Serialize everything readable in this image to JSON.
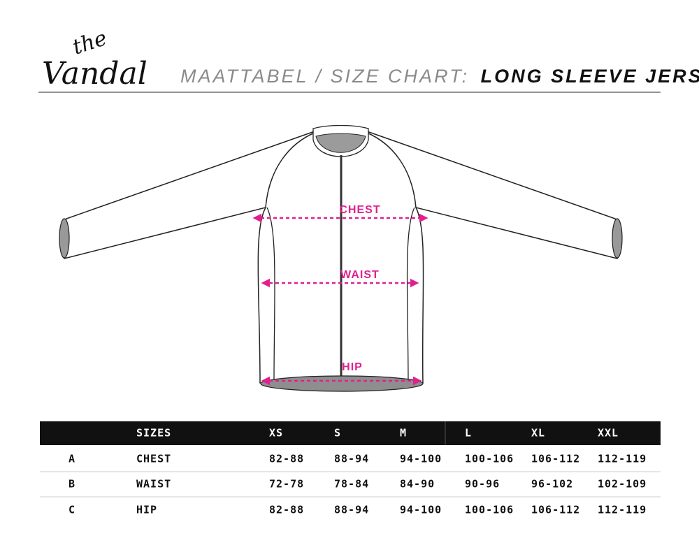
{
  "logo": {
    "line1": "the",
    "line2": "Vandal"
  },
  "title": {
    "prefix": "MAATTABEL / SIZE CHART:",
    "product": "LONG SLEEVE JERSEY"
  },
  "diagram": {
    "labels": [
      "CHEST",
      "WAIST",
      "HIP"
    ]
  },
  "table": {
    "header": [
      "SIZES",
      "XS",
      "S",
      "M",
      "L",
      "XL",
      "XXL"
    ],
    "rows": [
      [
        "A",
        "CHEST",
        "82-88",
        "88-94",
        "94-100",
        "100-106",
        "106-112",
        "112-119"
      ],
      [
        "B",
        "WAIST",
        "72-78",
        "78-84",
        "84-90",
        "90-96",
        "96-102",
        "102-109"
      ],
      [
        "C",
        "HIP",
        "82-88",
        "88-94",
        "94-100",
        "100-106",
        "106-112",
        "112-119"
      ]
    ]
  }
}
